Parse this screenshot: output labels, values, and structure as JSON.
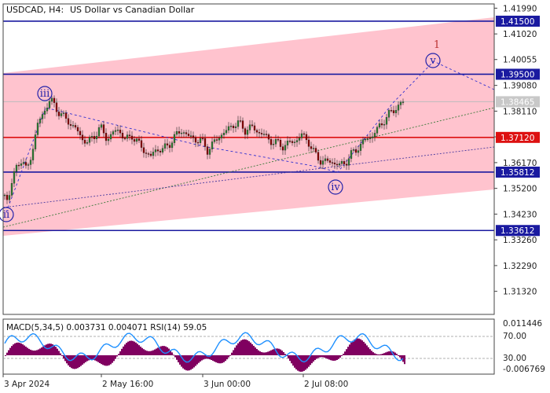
{
  "header": {
    "symbol_tf": "USDCAD, H4:",
    "description": "US Dollar vs Canadian Dollar"
  },
  "chart_data": {
    "type": "candlestick",
    "symbol": "USDCAD",
    "timeframe": "H4",
    "title": "US Dollar vs Canadian Dollar",
    "ylim": [
      1.3045,
      1.4215
    ],
    "y_ticks": [
      "1.41990",
      "1.41020",
      "1.40055",
      "1.39080",
      "1.38110",
      "1.37140",
      "1.36170",
      "1.35200",
      "1.34230",
      "1.33260",
      "1.32290",
      "1.31320"
    ],
    "x_ticks": [
      "3 Apr 2024",
      "2 May 16:00",
      "3 Jun 00:00",
      "2 Jul 08:00"
    ],
    "current_price": "1.38465",
    "levels": [
      {
        "label": "1.41500",
        "value": 1.415,
        "color": "#1a1aa0"
      },
      {
        "label": "1.39500",
        "value": 1.395,
        "color": "#1a1aa0"
      },
      {
        "label": "1.37120",
        "value": 1.3712,
        "color": "#dd1111"
      },
      {
        "label": "1.35812",
        "value": 1.35812,
        "color": "#1a1aa0"
      },
      {
        "label": "1.33612",
        "value": 1.33612,
        "color": "#1a1aa0"
      }
    ],
    "waves": [
      {
        "label": "ii",
        "color": "#2222aa"
      },
      {
        "label": "iii",
        "color": "#2222aa"
      },
      {
        "label": "iv",
        "color": "#2222aa"
      },
      {
        "label": "v",
        "color": "#2222aa"
      },
      {
        "label": "1",
        "color": "#bb3333"
      }
    ],
    "series": [
      {
        "anchors": [
          [
            0,
            1.3495
          ],
          [
            4,
            1.3475
          ],
          [
            10,
            1.3555
          ],
          [
            16,
            1.3605
          ],
          [
            22,
            1.3635
          ],
          [
            28,
            1.358
          ],
          [
            34,
            1.365
          ],
          [
            42,
            1.376
          ],
          [
            50,
            1.381
          ],
          [
            58,
            1.3855
          ],
          [
            66,
            1.382
          ],
          [
            74,
            1.379
          ],
          [
            82,
            1.377
          ],
          [
            90,
            1.3745
          ],
          [
            98,
            1.371
          ],
          [
            106,
            1.369
          ],
          [
            114,
            1.372
          ],
          [
            122,
            1.375
          ],
          [
            130,
            1.3705
          ],
          [
            138,
            1.373
          ],
          [
            146,
            1.374
          ],
          [
            154,
            1.37
          ],
          [
            162,
            1.372
          ],
          [
            170,
            1.369
          ],
          [
            178,
            1.366
          ],
          [
            186,
            1.364
          ],
          [
            194,
            1.367
          ],
          [
            202,
            1.3665
          ],
          [
            210,
            1.369
          ],
          [
            218,
            1.372
          ],
          [
            226,
            1.374
          ],
          [
            234,
            1.3715
          ],
          [
            242,
            1.3705
          ],
          [
            250,
            1.37
          ],
          [
            258,
            1.3665
          ],
          [
            266,
            1.369
          ],
          [
            274,
            1.372
          ],
          [
            282,
            1.3735
          ],
          [
            290,
            1.376
          ],
          [
            298,
            1.3765
          ],
          [
            306,
            1.374
          ],
          [
            314,
            1.375
          ],
          [
            322,
            1.3735
          ],
          [
            330,
            1.372
          ],
          [
            338,
            1.37
          ],
          [
            346,
            1.369
          ],
          [
            354,
            1.368
          ],
          [
            362,
            1.369
          ],
          [
            370,
            1.37
          ],
          [
            378,
            1.372
          ],
          [
            386,
            1.37
          ],
          [
            394,
            1.365
          ],
          [
            402,
            1.3625
          ],
          [
            410,
            1.362
          ],
          [
            418,
            1.362
          ],
          [
            426,
            1.3605
          ],
          [
            434,
            1.362
          ],
          [
            442,
            1.365
          ],
          [
            450,
            1.3675
          ],
          [
            458,
            1.37
          ],
          [
            466,
            1.3715
          ],
          [
            474,
            1.374
          ],
          [
            482,
            1.3775
          ],
          [
            490,
            1.38
          ],
          [
            498,
            1.3825
          ],
          [
            508,
            1.3845
          ]
        ]
      }
    ],
    "indicator": {
      "label": "MACD(5,34,5) 0.003731 0.004071 RSI(14) 59.05",
      "macd": "0.003731",
      "signal": "0.004071",
      "rsi": "59.05",
      "levels": [
        "70.00",
        "30.00"
      ],
      "scale": [
        "0.011446",
        "-0.006769"
      ]
    }
  }
}
